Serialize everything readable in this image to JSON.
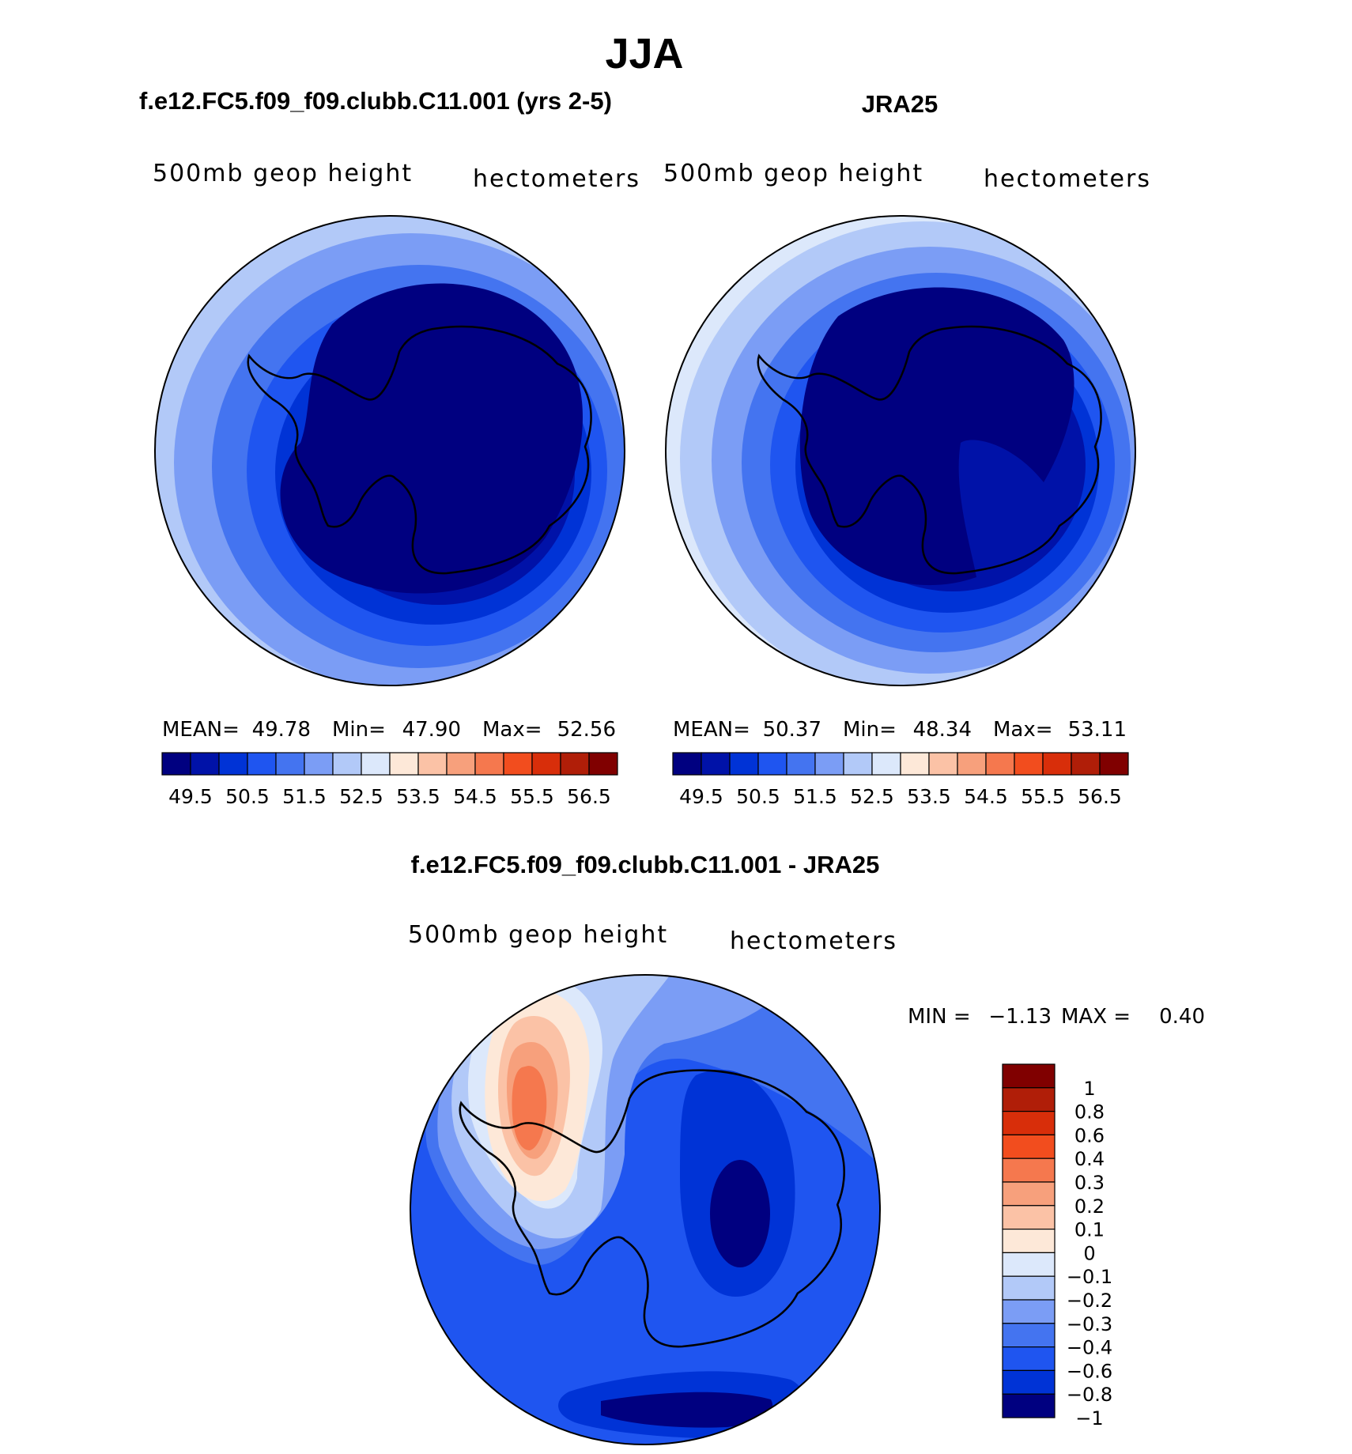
{
  "season": "JJA",
  "colors": {
    "seq": [
      "#000080",
      "#0012a8",
      "#0033d6",
      "#1f55f0",
      "#4474f0",
      "#7b9df5",
      "#b2c9f8",
      "#dce8fb",
      "#fde8d8",
      "#fbc2a6",
      "#f7a07c",
      "#f5784e",
      "#f24d1e",
      "#d82e0a",
      "#b01e08",
      "#800000"
    ],
    "diff": [
      "#000080",
      "#0033d6",
      "#1f55f0",
      "#4474f0",
      "#7b9df5",
      "#b2c9f8",
      "#dce8fb",
      "#fde8d8",
      "#fbc2a6",
      "#f7a07c",
      "#f5784e",
      "#f24d1e",
      "#d82e0a",
      "#b01e08",
      "#800000"
    ],
    "coast": "#000000"
  },
  "chart_data": [
    {
      "type": "heatmap",
      "title": "f.e12.FC5.f09_f09.clubb.C11.001 (yrs 2-5)",
      "variable": "500mb geop height",
      "units": "hectometers",
      "projection": "south polar stereographic",
      "stats": {
        "mean_label": "MEAN=",
        "mean": "49.78",
        "min_label": "Min=",
        "min": "47.90",
        "max_label": "Max=",
        "max": "52.56"
      },
      "contour_levels": [
        "49.5",
        "50",
        "50.5",
        "51",
        "51.5",
        "52",
        "52.5",
        "53",
        "53.5",
        "54",
        "54.5",
        "55",
        "55.5",
        "56",
        "56.5"
      ],
      "colorbar_labels": [
        "49.5",
        "50.5",
        "51.5",
        "52.5",
        "53.5",
        "54.5",
        "55.5",
        "56.5"
      ]
    },
    {
      "type": "heatmap",
      "title": "JRA25",
      "variable": "500mb geop height",
      "units": "hectometers",
      "projection": "south polar stereographic",
      "stats": {
        "mean_label": "MEAN=",
        "mean": "50.37",
        "min_label": "Min=",
        "min": "48.34",
        "max_label": "Max=",
        "max": "53.11"
      },
      "contour_levels": [
        "49.5",
        "50",
        "50.5",
        "51",
        "51.5",
        "52",
        "52.5",
        "53",
        "53.5",
        "54",
        "54.5",
        "55",
        "55.5",
        "56",
        "56.5"
      ],
      "colorbar_labels": [
        "49.5",
        "50.5",
        "51.5",
        "52.5",
        "53.5",
        "54.5",
        "55.5",
        "56.5"
      ]
    },
    {
      "type": "heatmap",
      "title": "f.e12.FC5.f09_f09.clubb.C11.001 - JRA25",
      "variable": "500mb geop height",
      "units": "hectometers",
      "projection": "south polar stereographic",
      "stats": {
        "min_label": "MIN =",
        "min": "−1.13",
        "max_label": "MAX =",
        "max": "0.40"
      },
      "colorbar_labels": [
        "1",
        "0.8",
        "0.6",
        "0.4",
        "0.3",
        "0.2",
        "0.1",
        "0",
        "−0.1",
        "−0.2",
        "−0.3",
        "−0.4",
        "−0.6",
        "−0.8",
        "−1"
      ]
    }
  ]
}
